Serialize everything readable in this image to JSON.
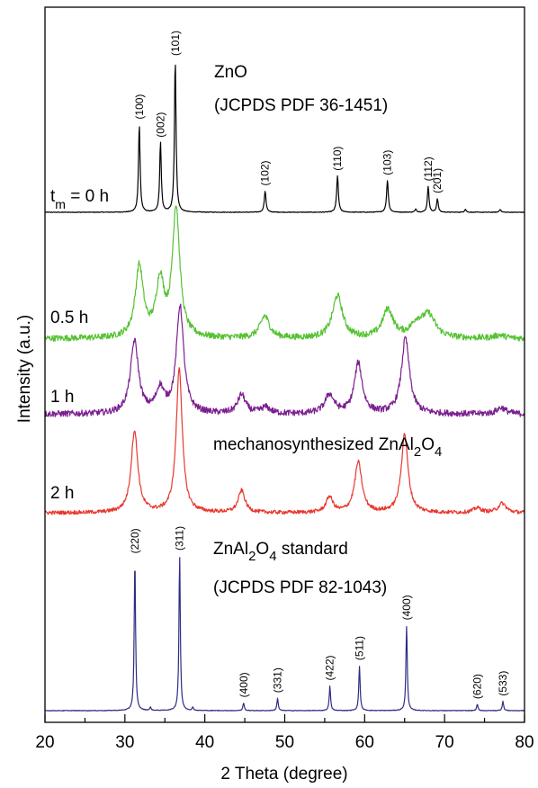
{
  "chart_data": {
    "type": "line",
    "xlabel": "2 Theta (degree)",
    "ylabel": "Intensity (a.u.)",
    "xlim": [
      20,
      80
    ],
    "xticks": [
      "20",
      "30",
      "40",
      "50",
      "60",
      "70",
      "80"
    ],
    "yticks_shown": false,
    "grid": false,
    "legend": "none",
    "series": [
      {
        "key": "zno",
        "color": "#000000",
        "label": "t_m = 0 h",
        "baseline": 0.0,
        "noise": 0.002,
        "peaks": [
          {
            "x": 31.8,
            "h": 0.58,
            "w": 0.12
          },
          {
            "x": 34.45,
            "h": 0.46,
            "w": 0.12
          },
          {
            "x": 36.3,
            "h": 1.0,
            "w": 0.12
          },
          {
            "x": 47.55,
            "h": 0.14,
            "w": 0.13
          },
          {
            "x": 56.6,
            "h": 0.24,
            "w": 0.13
          },
          {
            "x": 62.85,
            "h": 0.21,
            "w": 0.13
          },
          {
            "x": 66.4,
            "h": 0.02,
            "w": 0.12
          },
          {
            "x": 67.95,
            "h": 0.17,
            "w": 0.12
          },
          {
            "x": 69.1,
            "h": 0.09,
            "w": 0.12
          },
          {
            "x": 72.6,
            "h": 0.02,
            "w": 0.12
          },
          {
            "x": 76.95,
            "h": 0.02,
            "w": 0.12
          }
        ]
      },
      {
        "key": "m05",
        "color": "#55c232",
        "label": "0.5 h",
        "baseline": 0.02,
        "noise": 0.02,
        "peaks": [
          {
            "x": 31.8,
            "h": 0.45,
            "w": 0.6
          },
          {
            "x": 34.4,
            "h": 0.35,
            "w": 0.6
          },
          {
            "x": 36.4,
            "h": 0.82,
            "w": 0.55
          },
          {
            "x": 47.5,
            "h": 0.14,
            "w": 0.7
          },
          {
            "x": 56.6,
            "h": 0.27,
            "w": 0.75
          },
          {
            "x": 62.9,
            "h": 0.18,
            "w": 0.8
          },
          {
            "x": 66.5,
            "h": 0.08,
            "w": 0.9
          },
          {
            "x": 68.0,
            "h": 0.14,
            "w": 1.0
          },
          {
            "x": 76.9,
            "h": 0.02,
            "w": 0.8
          }
        ]
      },
      {
        "key": "m1",
        "color": "#7b1f8f",
        "label": "1 h",
        "baseline": 0.02,
        "noise": 0.02,
        "peaks": [
          {
            "x": 31.2,
            "h": 0.46,
            "w": 0.6
          },
          {
            "x": 34.4,
            "h": 0.15,
            "w": 0.6
          },
          {
            "x": 36.9,
            "h": 0.68,
            "w": 0.55
          },
          {
            "x": 44.6,
            "h": 0.12,
            "w": 0.6
          },
          {
            "x": 47.6,
            "h": 0.04,
            "w": 0.7
          },
          {
            "x": 55.6,
            "h": 0.12,
            "w": 0.7
          },
          {
            "x": 59.2,
            "h": 0.32,
            "w": 0.6
          },
          {
            "x": 65.1,
            "h": 0.48,
            "w": 0.6
          },
          {
            "x": 77.1,
            "h": 0.04,
            "w": 0.7
          }
        ]
      },
      {
        "key": "m2",
        "color": "#e8382e",
        "label": "2 h",
        "baseline": 0.01,
        "noise": 0.012,
        "peaks": [
          {
            "x": 31.2,
            "h": 0.52,
            "w": 0.5
          },
          {
            "x": 36.8,
            "h": 0.92,
            "w": 0.45
          },
          {
            "x": 44.6,
            "h": 0.14,
            "w": 0.5
          },
          {
            "x": 55.6,
            "h": 0.1,
            "w": 0.5
          },
          {
            "x": 59.2,
            "h": 0.32,
            "w": 0.55
          },
          {
            "x": 65.0,
            "h": 0.5,
            "w": 0.5
          },
          {
            "x": 74.1,
            "h": 0.03,
            "w": 0.6
          },
          {
            "x": 77.2,
            "h": 0.06,
            "w": 0.6
          }
        ]
      },
      {
        "key": "std",
        "color": "#2f2c84",
        "label": "",
        "baseline": 0.0,
        "noise": 0.002,
        "peaks": [
          {
            "x": 31.25,
            "h": 0.98,
            "w": 0.1
          },
          {
            "x": 33.2,
            "h": 0.02,
            "w": 0.1
          },
          {
            "x": 36.85,
            "h": 1.0,
            "w": 0.1
          },
          {
            "x": 38.5,
            "h": 0.02,
            "w": 0.1
          },
          {
            "x": 44.85,
            "h": 0.05,
            "w": 0.1
          },
          {
            "x": 49.1,
            "h": 0.08,
            "w": 0.1
          },
          {
            "x": 55.65,
            "h": 0.16,
            "w": 0.1
          },
          {
            "x": 59.35,
            "h": 0.29,
            "w": 0.1
          },
          {
            "x": 65.25,
            "h": 0.55,
            "w": 0.1
          },
          {
            "x": 74.1,
            "h": 0.04,
            "w": 0.1
          },
          {
            "x": 77.3,
            "h": 0.06,
            "w": 0.1
          }
        ]
      }
    ],
    "peak_labels": {
      "zno": [
        {
          "x": 31.8,
          "text": "(100)"
        },
        {
          "x": 34.45,
          "text": "(002)"
        },
        {
          "x": 36.3,
          "text": "(101)"
        },
        {
          "x": 47.55,
          "text": "(102)"
        },
        {
          "x": 56.6,
          "text": "(110)"
        },
        {
          "x": 62.85,
          "text": "(103)"
        },
        {
          "x": 67.95,
          "text": "(112)"
        },
        {
          "x": 69.1,
          "text": "(201)"
        }
      ],
      "std": [
        {
          "x": 31.25,
          "text": "(220)"
        },
        {
          "x": 36.85,
          "text": "(311)"
        },
        {
          "x": 44.85,
          "text": "(400)"
        },
        {
          "x": 49.1,
          "text": "(331)"
        },
        {
          "x": 55.65,
          "text": "(422)"
        },
        {
          "x": 59.35,
          "text": "(511)"
        },
        {
          "x": 65.25,
          "text": "(400)"
        },
        {
          "x": 74.1,
          "text": "(620)"
        },
        {
          "x": 77.3,
          "text": "(533)"
        }
      ]
    },
    "annotations": {
      "zno_name": "ZnO",
      "zno_pdf": "(JCPDS PDF 36-1451)",
      "mech_prefix": "mechanosynthesized ZnAl",
      "std_prefix": "ZnAl",
      "std_suffix": " standard",
      "std_pdf": "(JCPDS PDF 82-1043)",
      "sub_2": "2",
      "sub_o": "O",
      "sub_4": "4",
      "tm_t": "t",
      "tm_m": "m",
      "tm_rest": " = 0 h",
      "label_05": "0.5 h",
      "label_1": "1 h",
      "label_2": "2 h"
    }
  }
}
